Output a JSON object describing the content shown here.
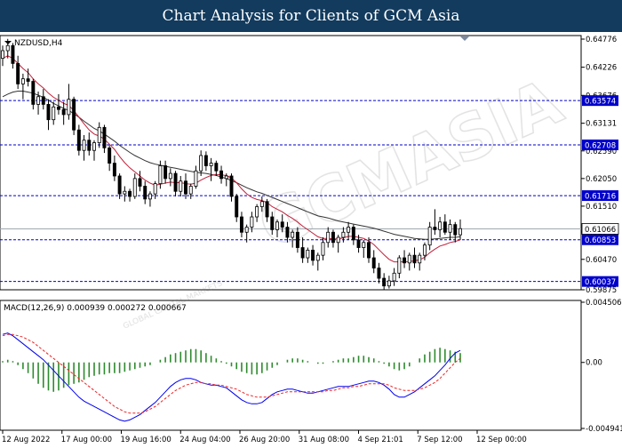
{
  "banner": {
    "title": "Chart Analysis for Clients of GCM Asia"
  },
  "chart_data": [
    {
      "type": "candlestick",
      "symbol_label": "NZDUSD,H4",
      "watermark": "GCMASIA",
      "watermark_sub": "GLOBAL CAPITAL MARKETS",
      "ylim": [
        0.59875,
        0.64776
      ],
      "price_ticks": [
        "0.64776",
        "0.64226",
        "0.63676",
        "0.63131",
        "0.62590",
        "0.62050",
        "0.61510",
        "0.61006",
        "0.60470",
        "0.59875"
      ],
      "levels": [
        {
          "value": 0.63574,
          "label": "0.63574",
          "color": "#0000cc"
        },
        {
          "value": 0.62708,
          "label": "0.62708",
          "color": "#0000cc"
        },
        {
          "value": 0.61716,
          "label": "0.61716",
          "color": "#0000cc"
        },
        {
          "value": 0.60853,
          "label": "0.60853",
          "color": "#0000cc"
        },
        {
          "value": 0.60037,
          "label": "0.60037",
          "color": "#0000cc"
        }
      ],
      "current": {
        "value": 0.61066,
        "label": "0.61066"
      },
      "x_labels": [
        "12 Aug 2022",
        "17 Aug 00:00",
        "19 Aug 16:00",
        "24 Aug 04:00",
        "26 Aug 20:00",
        "31 Aug 08:00",
        "4 Sep 21:01",
        "7 Sep 12:00",
        "12 Sep 00:00"
      ],
      "ohlc": [
        [
          0.644,
          0.6465,
          0.6425,
          0.6455
        ],
        [
          0.6455,
          0.6478,
          0.644,
          0.6465
        ],
        [
          0.6465,
          0.647,
          0.642,
          0.643
        ],
        [
          0.643,
          0.6445,
          0.638,
          0.639
        ],
        [
          0.639,
          0.641,
          0.636,
          0.64
        ],
        [
          0.64,
          0.642,
          0.6385,
          0.6395
        ],
        [
          0.6395,
          0.64,
          0.634,
          0.635
        ],
        [
          0.635,
          0.6375,
          0.633,
          0.6365
        ],
        [
          0.6365,
          0.638,
          0.634,
          0.635
        ],
        [
          0.635,
          0.636,
          0.63,
          0.632
        ],
        [
          0.632,
          0.6355,
          0.631,
          0.6345
        ],
        [
          0.6345,
          0.637,
          0.633,
          0.634
        ],
        [
          0.634,
          0.6355,
          0.631,
          0.633
        ],
        [
          0.633,
          0.639,
          0.632,
          0.636
        ],
        [
          0.636,
          0.6365,
          0.629,
          0.63
        ],
        [
          0.63,
          0.631,
          0.625,
          0.626
        ],
        [
          0.626,
          0.629,
          0.624,
          0.628
        ],
        [
          0.628,
          0.6295,
          0.625,
          0.626
        ],
        [
          0.626,
          0.628,
          0.624,
          0.6275
        ],
        [
          0.6275,
          0.6315,
          0.6265,
          0.6305
        ],
        [
          0.6305,
          0.631,
          0.6255,
          0.6265
        ],
        [
          0.6265,
          0.627,
          0.622,
          0.6235
        ],
        [
          0.6235,
          0.625,
          0.62,
          0.621
        ],
        [
          0.621,
          0.6215,
          0.6165,
          0.6175
        ],
        [
          0.6175,
          0.619,
          0.616,
          0.618
        ],
        [
          0.618,
          0.6185,
          0.616,
          0.617
        ],
        [
          0.617,
          0.6215,
          0.6165,
          0.6205
        ],
        [
          0.6205,
          0.622,
          0.618,
          0.619
        ],
        [
          0.619,
          0.62,
          0.6155,
          0.6165
        ],
        [
          0.6165,
          0.618,
          0.615,
          0.6175
        ],
        [
          0.6175,
          0.62,
          0.6165,
          0.6195
        ],
        [
          0.6195,
          0.624,
          0.6185,
          0.623
        ],
        [
          0.623,
          0.624,
          0.6195,
          0.6205
        ],
        [
          0.6205,
          0.6225,
          0.619,
          0.6215
        ],
        [
          0.6215,
          0.622,
          0.617,
          0.618
        ],
        [
          0.618,
          0.621,
          0.617,
          0.62
        ],
        [
          0.62,
          0.6215,
          0.6165,
          0.6175
        ],
        [
          0.6175,
          0.6195,
          0.6165,
          0.619
        ],
        [
          0.619,
          0.623,
          0.6185,
          0.622
        ],
        [
          0.622,
          0.626,
          0.621,
          0.625
        ],
        [
          0.625,
          0.6258,
          0.622,
          0.623
        ],
        [
          0.623,
          0.6245,
          0.62,
          0.6235
        ],
        [
          0.6235,
          0.624,
          0.621,
          0.622
        ],
        [
          0.622,
          0.623,
          0.6195,
          0.6205
        ],
        [
          0.6205,
          0.6215,
          0.619,
          0.621
        ],
        [
          0.621,
          0.6215,
          0.616,
          0.617
        ],
        [
          0.617,
          0.6175,
          0.612,
          0.613
        ],
        [
          0.613,
          0.614,
          0.609,
          0.61
        ],
        [
          0.61,
          0.6115,
          0.608,
          0.611
        ],
        [
          0.611,
          0.614,
          0.61,
          0.613
        ],
        [
          0.613,
          0.6155,
          0.612,
          0.615
        ],
        [
          0.615,
          0.617,
          0.614,
          0.616
        ],
        [
          0.616,
          0.6165,
          0.612,
          0.613
        ],
        [
          0.613,
          0.614,
          0.6095,
          0.6105
        ],
        [
          0.6105,
          0.6125,
          0.609,
          0.612
        ],
        [
          0.612,
          0.6135,
          0.61,
          0.611
        ],
        [
          0.611,
          0.612,
          0.608,
          0.609
        ],
        [
          0.609,
          0.6105,
          0.607,
          0.61
        ],
        [
          0.61,
          0.611,
          0.606,
          0.607
        ],
        [
          0.607,
          0.609,
          0.604,
          0.605
        ],
        [
          0.605,
          0.607,
          0.604,
          0.6065
        ],
        [
          0.6065,
          0.6075,
          0.6035,
          0.6045
        ],
        [
          0.6045,
          0.606,
          0.6025,
          0.6055
        ],
        [
          0.6055,
          0.609,
          0.6045,
          0.608
        ],
        [
          0.608,
          0.611,
          0.607,
          0.61
        ],
        [
          0.61,
          0.6105,
          0.607,
          0.608
        ],
        [
          0.608,
          0.6095,
          0.606,
          0.609
        ],
        [
          0.609,
          0.611,
          0.608,
          0.61
        ],
        [
          0.61,
          0.612,
          0.6085,
          0.611
        ],
        [
          0.611,
          0.6115,
          0.6075,
          0.6085
        ],
        [
          0.6085,
          0.6095,
          0.606,
          0.607
        ],
        [
          0.607,
          0.6085,
          0.605,
          0.608
        ],
        [
          0.608,
          0.609,
          0.604,
          0.605
        ],
        [
          0.605,
          0.6065,
          0.602,
          0.603
        ],
        [
          0.603,
          0.604,
          0.6,
          0.601
        ],
        [
          0.601,
          0.602,
          0.5988,
          0.5995
        ],
        [
          0.5995,
          0.6015,
          0.599,
          0.6005
        ],
        [
          0.6005,
          0.603,
          0.5995,
          0.602
        ],
        [
          0.602,
          0.6055,
          0.601,
          0.605
        ],
        [
          0.605,
          0.6065,
          0.603,
          0.604
        ],
        [
          0.604,
          0.606,
          0.6025,
          0.6055
        ],
        [
          0.6055,
          0.607,
          0.603,
          0.604
        ],
        [
          0.604,
          0.606,
          0.6025,
          0.6055
        ],
        [
          0.6055,
          0.608,
          0.6045,
          0.6075
        ],
        [
          0.6075,
          0.612,
          0.6065,
          0.611
        ],
        [
          0.611,
          0.6145,
          0.6095,
          0.6105
        ],
        [
          0.6105,
          0.613,
          0.609,
          0.612
        ],
        [
          0.612,
          0.6135,
          0.6095,
          0.61
        ],
        [
          0.61,
          0.6125,
          0.6085,
          0.6115
        ],
        [
          0.6115,
          0.612,
          0.608,
          0.6095
        ],
        [
          0.6095,
          0.6125,
          0.6085,
          0.6107
        ]
      ],
      "ma_black": [
        0.6365,
        0.637,
        0.6374,
        0.6376,
        0.6376,
        0.6374,
        0.6372,
        0.6368,
        0.6364,
        0.6358,
        0.6352,
        0.6347,
        0.6342,
        0.6338,
        0.6332,
        0.6325,
        0.6317,
        0.631,
        0.6303,
        0.6298,
        0.6292,
        0.6285,
        0.6278,
        0.627,
        0.6263,
        0.6256,
        0.625,
        0.6245,
        0.624,
        0.6236,
        0.6233,
        0.6231,
        0.6229,
        0.6227,
        0.6225,
        0.6223,
        0.6221,
        0.6219,
        0.6217,
        0.6216,
        0.6215,
        0.6213,
        0.6211,
        0.6208,
        0.6205,
        0.6201,
        0.6197,
        0.6192,
        0.6187,
        0.6183,
        0.6179,
        0.6176,
        0.6172,
        0.6168,
        0.6164,
        0.616,
        0.6156,
        0.6152,
        0.6148,
        0.6144,
        0.614,
        0.6136,
        0.6132,
        0.613,
        0.6128,
        0.6125,
        0.6122,
        0.612,
        0.6118,
        0.6116,
        0.6114,
        0.6112,
        0.611,
        0.6108,
        0.6105,
        0.6102,
        0.6099,
        0.6096,
        0.6094,
        0.6092,
        0.609,
        0.6088,
        0.6087,
        0.6086,
        0.6086,
        0.6087,
        0.6088,
        0.6089,
        0.609,
        0.609,
        0.6091
      ],
      "ma_red": [
        0.644,
        0.6445,
        0.644,
        0.643,
        0.642,
        0.6412,
        0.64,
        0.639,
        0.6382,
        0.6372,
        0.6364,
        0.6358,
        0.6352,
        0.6348,
        0.6338,
        0.6325,
        0.6312,
        0.63,
        0.6292,
        0.6288,
        0.6282,
        0.6272,
        0.6262,
        0.6248,
        0.6236,
        0.6226,
        0.6218,
        0.621,
        0.6202,
        0.6196,
        0.6192,
        0.6194,
        0.6196,
        0.6198,
        0.6197,
        0.6197,
        0.6195,
        0.6194,
        0.6196,
        0.6202,
        0.6207,
        0.6211,
        0.6213,
        0.6212,
        0.6211,
        0.6206,
        0.6197,
        0.6185,
        0.6175,
        0.6168,
        0.6164,
        0.6162,
        0.6158,
        0.615,
        0.6145,
        0.614,
        0.6133,
        0.6127,
        0.612,
        0.6112,
        0.6105,
        0.6098,
        0.6091,
        0.6088,
        0.6088,
        0.6087,
        0.6087,
        0.6089,
        0.6092,
        0.6092,
        0.609,
        0.6088,
        0.6083,
        0.6076,
        0.6066,
        0.6056,
        0.6047,
        0.6042,
        0.6042,
        0.6042,
        0.6043,
        0.6044,
        0.6046,
        0.6051,
        0.606,
        0.6067,
        0.6073,
        0.6076,
        0.608,
        0.6082,
        0.6085
      ]
    },
    {
      "type": "bar+line",
      "label": "MACD(12,26,9) 0.000939 0.000272 0.000667",
      "ylim": [
        -0.004941,
        0.004506
      ],
      "y_ticks": [
        "0.004506",
        "0.00",
        "-0.004941"
      ],
      "histogram": [
        0.0001,
        0.0002,
        0.0001,
        -0.0002,
        -0.0005,
        -0.0008,
        -0.0012,
        -0.0016,
        -0.0019,
        -0.0021,
        -0.0022,
        -0.0021,
        -0.0019,
        -0.0017,
        -0.0016,
        -0.0015,
        -0.0013,
        -0.0011,
        -0.001,
        -0.0009,
        -0.0009,
        -0.0008,
        -0.0008,
        -0.0008,
        -0.0007,
        -0.0006,
        -0.0005,
        -0.0004,
        -0.0003,
        -0.0002,
        0.0,
        0.0002,
        0.0004,
        0.0006,
        0.0007,
        0.0008,
        0.0009,
        0.001,
        0.001,
        0.0009,
        0.0007,
        0.0005,
        0.0003,
        0.0001,
        -0.0001,
        -0.0003,
        -0.0005,
        -0.0007,
        -0.0008,
        -0.0009,
        -0.0009,
        -0.0008,
        -0.0006,
        -0.0004,
        -0.0002,
        0.0,
        0.0002,
        0.0003,
        0.0003,
        0.0002,
        0.0001,
        0.0,
        -0.0001,
        -0.0001,
        0.0,
        0.0001,
        0.0002,
        0.0003,
        0.0003,
        0.0004,
        0.0005,
        0.0005,
        0.0004,
        0.0003,
        0.0001,
        -0.0001,
        -0.0003,
        -0.0005,
        -0.0006,
        -0.0005,
        -0.0003,
        0.0,
        0.0003,
        0.0006,
        0.0008,
        0.001,
        0.0011,
        0.001,
        0.0009,
        0.0008,
        0.0007
      ],
      "macd": [
        0.0021,
        0.0022,
        0.002,
        0.0017,
        0.0014,
        0.0011,
        0.0008,
        0.0005,
        0.0002,
        -0.0002,
        -0.0006,
        -0.001,
        -0.0014,
        -0.0018,
        -0.0022,
        -0.0026,
        -0.0029,
        -0.0031,
        -0.0033,
        -0.0035,
        -0.0037,
        -0.0039,
        -0.0041,
        -0.0043,
        -0.0044,
        -0.0043,
        -0.0041,
        -0.0039,
        -0.0036,
        -0.0033,
        -0.003,
        -0.0026,
        -0.0022,
        -0.0018,
        -0.0015,
        -0.0013,
        -0.0012,
        -0.0012,
        -0.0013,
        -0.0015,
        -0.0016,
        -0.0017,
        -0.0017,
        -0.0018,
        -0.0019,
        -0.0022,
        -0.0025,
        -0.0028,
        -0.003,
        -0.0031,
        -0.0031,
        -0.003,
        -0.0027,
        -0.0024,
        -0.0022,
        -0.0021,
        -0.002,
        -0.002,
        -0.0021,
        -0.0022,
        -0.0023,
        -0.0023,
        -0.0022,
        -0.0021,
        -0.002,
        -0.0019,
        -0.0018,
        -0.0018,
        -0.0018,
        -0.0017,
        -0.0016,
        -0.0015,
        -0.0014,
        -0.0014,
        -0.0015,
        -0.0017,
        -0.002,
        -0.0024,
        -0.0026,
        -0.0026,
        -0.0024,
        -0.0022,
        -0.0019,
        -0.0016,
        -0.0013,
        -0.001,
        -0.0006,
        -0.0002,
        0.0003,
        0.0007,
        0.0009
      ],
      "signal": [
        0.002,
        0.0021,
        0.0021,
        0.002,
        0.0019,
        0.0017,
        0.0015,
        0.0012,
        0.0009,
        0.0006,
        0.0003,
        0.0,
        -0.0003,
        -0.0006,
        -0.0009,
        -0.0012,
        -0.0015,
        -0.0018,
        -0.0021,
        -0.0024,
        -0.0027,
        -0.003,
        -0.0033,
        -0.0035,
        -0.0037,
        -0.0038,
        -0.0038,
        -0.0038,
        -0.0037,
        -0.0035,
        -0.0033,
        -0.003,
        -0.0027,
        -0.0024,
        -0.0021,
        -0.0019,
        -0.0017,
        -0.0016,
        -0.0015,
        -0.0015,
        -0.0016,
        -0.0016,
        -0.0017,
        -0.0017,
        -0.0018,
        -0.0019,
        -0.002,
        -0.0022,
        -0.0024,
        -0.0025,
        -0.0026,
        -0.0026,
        -0.0026,
        -0.0025,
        -0.0024,
        -0.0023,
        -0.0022,
        -0.0022,
        -0.0022,
        -0.0022,
        -0.0022,
        -0.0022,
        -0.0022,
        -0.0022,
        -0.0021,
        -0.0021,
        -0.002,
        -0.0019,
        -0.0019,
        -0.0018,
        -0.0018,
        -0.0017,
        -0.0016,
        -0.0016,
        -0.0016,
        -0.0016,
        -0.0017,
        -0.0019,
        -0.002,
        -0.0021,
        -0.0021,
        -0.0021,
        -0.002,
        -0.0019,
        -0.0017,
        -0.0015,
        -0.0012,
        -0.0008,
        -0.0004,
        0.0,
        0.0003
      ]
    }
  ],
  "colors": {
    "banner": "#123b5e",
    "bull": "#ffffff",
    "bear": "#000000",
    "ma_black": "#333333",
    "ma_red": "#c0203a",
    "level": "#0000cc",
    "histogram": "#2e8b2e",
    "macd": "#0000ee",
    "signal": "#ee2222"
  }
}
